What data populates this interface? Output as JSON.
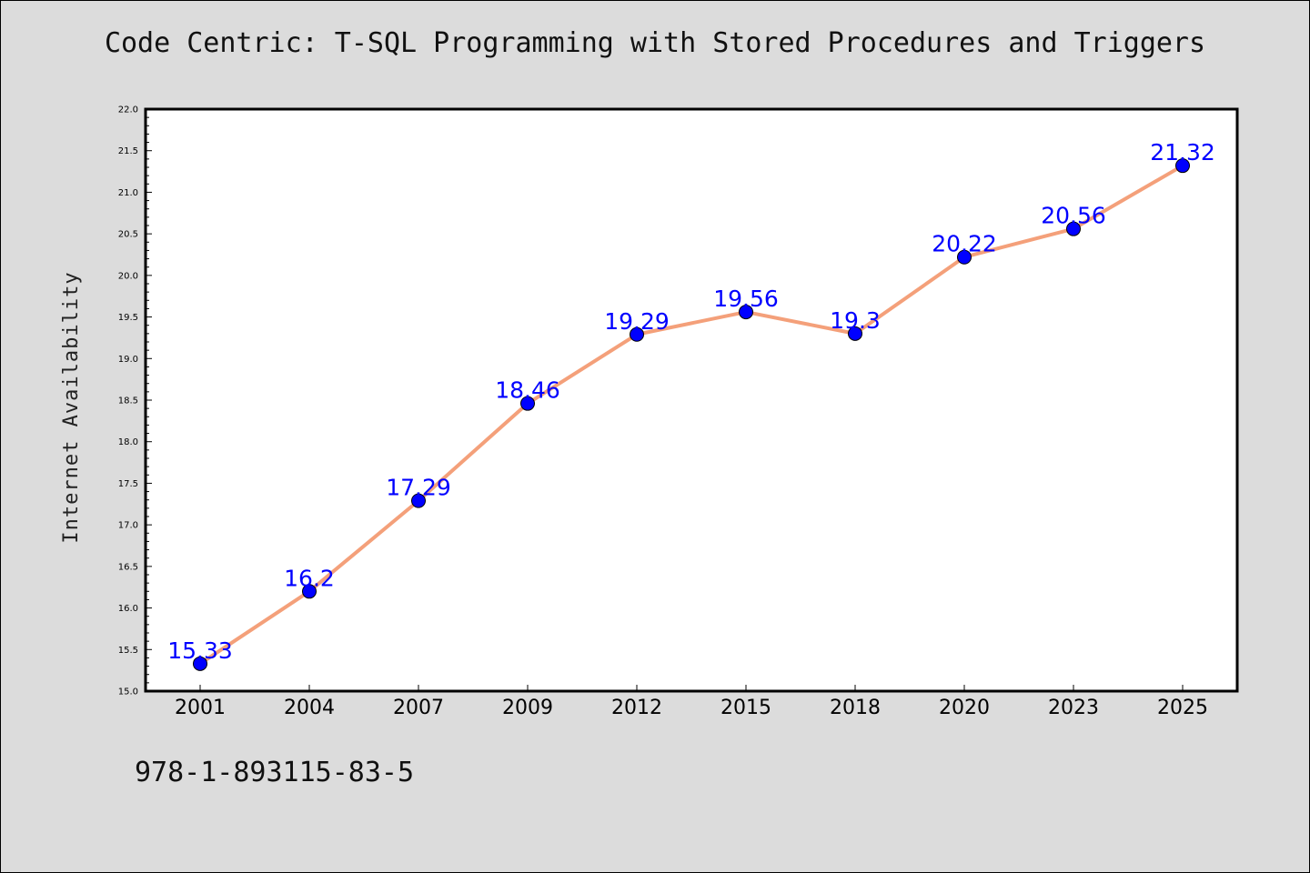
{
  "chart_data": {
    "type": "line",
    "title": "Code Centric: T-SQL Programming with Stored Procedures and Triggers",
    "xlabel": "",
    "ylabel": "Internet Availability",
    "categories": [
      "2001",
      "2004",
      "2007",
      "2009",
      "2012",
      "2015",
      "2018",
      "2020",
      "2023",
      "2025"
    ],
    "values": [
      15.33,
      16.2,
      17.29,
      18.46,
      19.29,
      19.56,
      19.3,
      20.22,
      20.56,
      21.32
    ],
    "data_labels": [
      "15.33",
      "16.2",
      "17.29",
      "18.46",
      "19.29",
      "19.56",
      "19.3",
      "20.22",
      "20.56",
      "21.32"
    ],
    "ylim": [
      15.0,
      22.0
    ],
    "yticks": [
      "15.0",
      "15.5",
      "16.0",
      "16.5",
      "17.0",
      "17.5",
      "18.0",
      "18.5",
      "19.0",
      "19.5",
      "20.0",
      "20.5",
      "21.0",
      "21.5",
      "22.0"
    ],
    "grid": false,
    "line_color": "#f4a07a",
    "marker_color": "#0000ff",
    "label_color": "#0000ff",
    "background": "#dcdcdc",
    "plot_background": "#ffffff"
  },
  "footer": {
    "isbn": "978-1-893115-83-5"
  }
}
